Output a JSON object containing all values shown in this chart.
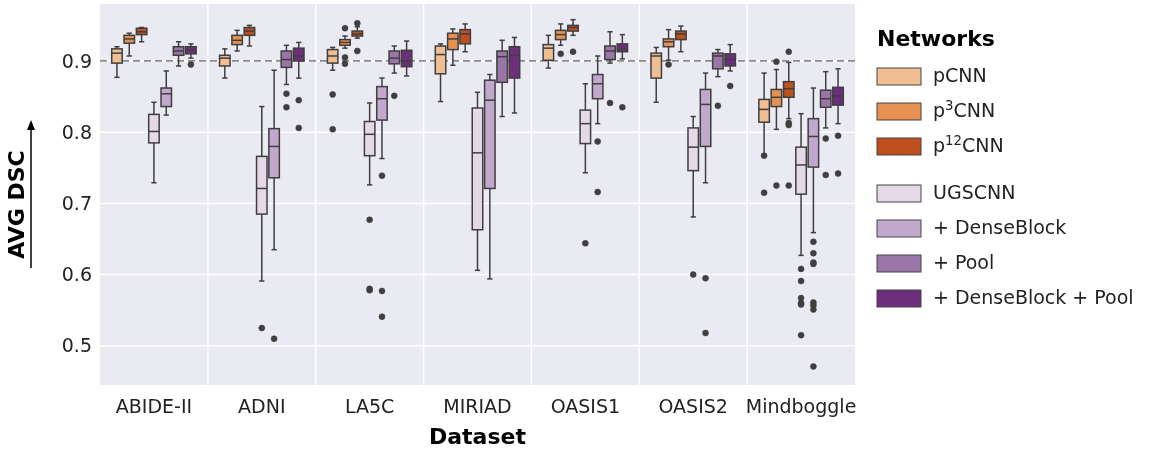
{
  "chart_data": {
    "type": "box",
    "xlabel": "Dataset",
    "ylabel": "AVG DSC",
    "legend_title": "Networks",
    "legend": "right",
    "grid": true,
    "categories": [
      "ABIDE-II",
      "ADNI",
      "LA5C",
      "MIRIAD",
      "OASIS1",
      "OASIS2",
      "Mindboggle"
    ],
    "ylim": [
      0.445,
      0.98
    ],
    "yticks": [
      0.5,
      0.6,
      0.7,
      0.8,
      0.9
    ],
    "ref_lines": [
      {
        "axis": "y",
        "value": 0.9,
        "color": "#8c8c8c",
        "line_style": "dashed"
      }
    ],
    "series": [
      {
        "name": "pCNN",
        "color": "#efbe92",
        "boxes": [
          {
            "low": 0.877,
            "q1": 0.897,
            "median": 0.911,
            "q3": 0.917,
            "high": 0.92
          },
          {
            "low": 0.876,
            "q1": 0.893,
            "median": 0.904,
            "q3": 0.908,
            "high": 0.917
          },
          {
            "low": 0.887,
            "q1": 0.897,
            "median": 0.907,
            "q3": 0.916,
            "high": 0.919,
            "outliers": [
              0.853,
              0.804
            ]
          },
          {
            "low": 0.843,
            "q1": 0.882,
            "median": 0.909,
            "q3": 0.921,
            "high": 0.924
          },
          {
            "low": 0.89,
            "q1": 0.901,
            "median": 0.918,
            "q3": 0.923,
            "high": 0.936
          },
          {
            "low": 0.842,
            "q1": 0.876,
            "median": 0.907,
            "q3": 0.911,
            "high": 0.919
          },
          {
            "low": 0.769,
            "q1": 0.814,
            "median": 0.832,
            "q3": 0.846,
            "high": 0.883,
            "outliers": [
              0.767,
              0.715
            ]
          }
        ]
      },
      {
        "name": "p$^{3}$CNN",
        "color": "#e69152",
        "boxes": [
          {
            "low": 0.907,
            "q1": 0.925,
            "median": 0.931,
            "q3": 0.936,
            "high": 0.939
          },
          {
            "low": 0.914,
            "q1": 0.923,
            "median": 0.929,
            "q3": 0.936,
            "high": 0.943
          },
          {
            "low": 0.918,
            "q1": 0.922,
            "median": 0.926,
            "q3": 0.93,
            "high": 0.935,
            "outliers": [
              0.946,
              0.905,
              0.896
            ]
          },
          {
            "low": 0.894,
            "q1": 0.916,
            "median": 0.931,
            "q3": 0.939,
            "high": 0.945
          },
          {
            "low": 0.922,
            "q1": 0.93,
            "median": 0.937,
            "q3": 0.943,
            "high": 0.952,
            "outliers": [
              0.91
            ]
          },
          {
            "low": 0.901,
            "q1": 0.92,
            "median": 0.927,
            "q3": 0.931,
            "high": 0.944,
            "outliers": [
              0.895
            ]
          },
          {
            "low": 0.804,
            "q1": 0.836,
            "median": 0.849,
            "q3": 0.86,
            "high": 0.888,
            "outliers": [
              0.899,
              0.725
            ]
          }
        ]
      },
      {
        "name": "p$^{12}$CNN",
        "color": "#bf4f1f",
        "boxes": [
          {
            "low": 0.927,
            "q1": 0.937,
            "median": 0.941,
            "q3": 0.946,
            "high": 0.947
          },
          {
            "low": 0.921,
            "q1": 0.936,
            "median": 0.942,
            "q3": 0.947,
            "high": 0.95
          },
          {
            "low": 0.932,
            "q1": 0.935,
            "median": 0.938,
            "q3": 0.942,
            "high": 0.948,
            "outliers": [
              0.953,
              0.914
            ]
          },
          {
            "low": 0.913,
            "q1": 0.924,
            "median": 0.938,
            "q3": 0.944,
            "high": 0.952
          },
          {
            "low": 0.936,
            "q1": 0.942,
            "median": 0.947,
            "q3": 0.95,
            "high": 0.958,
            "outliers": [
              0.913
            ]
          },
          {
            "low": 0.913,
            "q1": 0.93,
            "median": 0.938,
            "q3": 0.942,
            "high": 0.949
          },
          {
            "low": 0.819,
            "q1": 0.849,
            "median": 0.861,
            "q3": 0.871,
            "high": 0.898,
            "outliers": [
              0.913,
              0.813,
              0.81,
              0.725
            ]
          }
        ]
      },
      {
        "name": "UGSCNN",
        "color": "#e5d9e8",
        "boxes": [
          {
            "low": 0.729,
            "q1": 0.785,
            "median": 0.801,
            "q3": 0.825,
            "high": 0.842
          },
          {
            "low": 0.591,
            "q1": 0.685,
            "median": 0.721,
            "q3": 0.766,
            "high": 0.836,
            "outliers": [
              0.525
            ]
          },
          {
            "low": 0.726,
            "q1": 0.767,
            "median": 0.797,
            "q3": 0.815,
            "high": 0.841,
            "outliers": [
              0.677,
              0.58,
              0.578
            ]
          },
          {
            "low": 0.606,
            "q1": 0.663,
            "median": 0.771,
            "q3": 0.834,
            "high": 0.856
          },
          {
            "low": 0.743,
            "q1": 0.784,
            "median": 0.812,
            "q3": 0.831,
            "high": 0.868,
            "outliers": [
              0.644
            ]
          },
          {
            "low": 0.681,
            "q1": 0.746,
            "median": 0.779,
            "q3": 0.806,
            "high": 0.822,
            "outliers": [
              0.6
            ]
          },
          {
            "low": 0.627,
            "q1": 0.713,
            "median": 0.754,
            "q3": 0.779,
            "high": 0.826,
            "outliers": [
              0.608,
              0.591,
              0.567,
              0.56,
              0.558,
              0.515
            ]
          }
        ]
      },
      {
        "name": "+ DenseBlock",
        "color": "#c2a8cc",
        "boxes": [
          {
            "low": 0.824,
            "q1": 0.836,
            "median": 0.854,
            "q3": 0.862,
            "high": 0.886
          },
          {
            "low": 0.635,
            "q1": 0.736,
            "median": 0.78,
            "q3": 0.805,
            "high": 0.887,
            "outliers": [
              0.51
            ]
          },
          {
            "low": 0.763,
            "q1": 0.817,
            "median": 0.847,
            "q3": 0.864,
            "high": 0.876,
            "outliers": [
              0.739,
              0.577,
              0.541
            ]
          },
          {
            "low": 0.594,
            "q1": 0.721,
            "median": 0.845,
            "q3": 0.873,
            "high": 0.881
          },
          {
            "low": 0.812,
            "q1": 0.847,
            "median": 0.868,
            "q3": 0.881,
            "high": 0.907,
            "outliers": [
              0.787,
              0.716
            ]
          },
          {
            "low": 0.729,
            "q1": 0.78,
            "median": 0.839,
            "q3": 0.86,
            "high": 0.883,
            "outliers": [
              0.595,
              0.518
            ]
          },
          {
            "low": 0.659,
            "q1": 0.751,
            "median": 0.794,
            "q3": 0.819,
            "high": 0.862,
            "outliers": [
              0.646,
              0.63,
              0.617,
              0.615,
              0.561,
              0.557,
              0.551,
              0.471
            ]
          }
        ]
      },
      {
        "name": "+ Pool",
        "color": "#9a76a8",
        "boxes": [
          {
            "low": 0.893,
            "q1": 0.908,
            "median": 0.914,
            "q3": 0.92,
            "high": 0.927
          },
          {
            "low": 0.867,
            "q1": 0.891,
            "median": 0.902,
            "q3": 0.914,
            "high": 0.922,
            "outliers": [
              0.854,
              0.835
            ]
          },
          {
            "low": 0.883,
            "q1": 0.896,
            "median": 0.904,
            "q3": 0.914,
            "high": 0.921,
            "outliers": [
              0.851
            ]
          },
          {
            "low": 0.822,
            "q1": 0.87,
            "median": 0.906,
            "q3": 0.914,
            "high": 0.929
          },
          {
            "low": 0.897,
            "q1": 0.902,
            "median": 0.914,
            "q3": 0.921,
            "high": 0.941,
            "outliers": [
              0.841
            ]
          },
          {
            "low": 0.878,
            "q1": 0.889,
            "median": 0.907,
            "q3": 0.911,
            "high": 0.916,
            "outliers": [
              0.837
            ]
          },
          {
            "low": 0.806,
            "q1": 0.835,
            "median": 0.847,
            "q3": 0.859,
            "high": 0.885,
            "outliers": [
              0.791,
              0.74
            ]
          }
        ]
      },
      {
        "name": "+ DenseBlock + Pool",
        "color": "#6d2f7c",
        "boxes": [
          {
            "low": 0.904,
            "q1": 0.91,
            "median": 0.916,
            "q3": 0.92,
            "high": 0.924,
            "outliers": [
              0.895
            ]
          },
          {
            "low": 0.876,
            "q1": 0.9,
            "median": 0.907,
            "q3": 0.918,
            "high": 0.926,
            "outliers": [
              0.845,
              0.806
            ]
          },
          {
            "low": 0.879,
            "q1": 0.892,
            "median": 0.9,
            "q3": 0.915,
            "high": 0.928
          },
          {
            "low": 0.827,
            "q1": 0.876,
            "median": 0.908,
            "q3": 0.92,
            "high": 0.933
          },
          {
            "low": 0.903,
            "q1": 0.913,
            "median": 0.917,
            "q3": 0.924,
            "high": 0.937,
            "outliers": [
              0.835
            ]
          },
          {
            "low": 0.886,
            "q1": 0.893,
            "median": 0.902,
            "q3": 0.91,
            "high": 0.923,
            "outliers": [
              0.865
            ]
          },
          {
            "low": 0.812,
            "q1": 0.838,
            "median": 0.851,
            "q3": 0.863,
            "high": 0.889,
            "outliers": [
              0.795,
              0.742
            ]
          }
        ]
      }
    ]
  }
}
